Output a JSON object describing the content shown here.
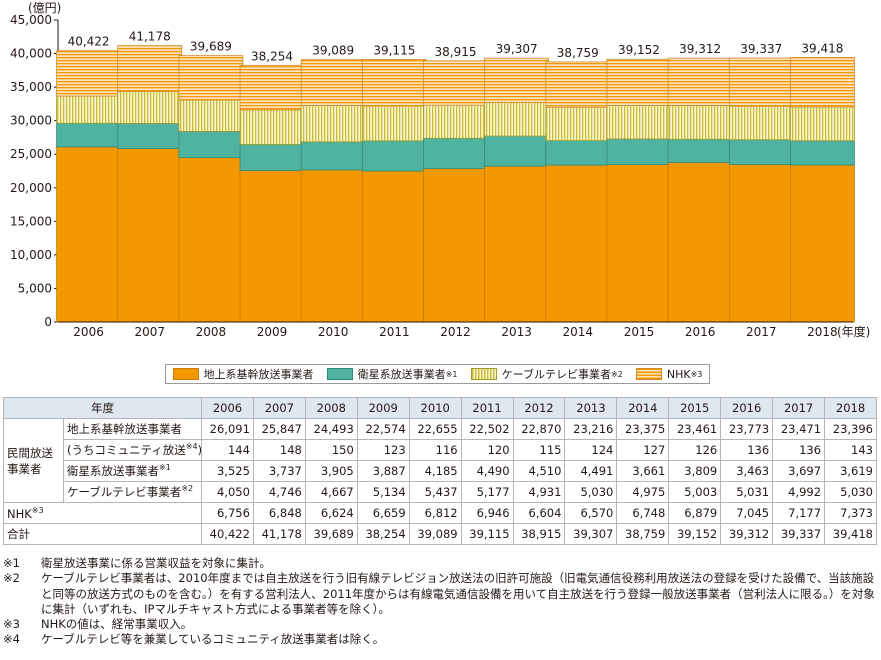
{
  "chart_data": {
    "type": "bar",
    "stacked": true,
    "unit_label": "(億円)",
    "x_unit_label": "(年度)",
    "categories": [
      "2006",
      "2007",
      "2008",
      "2009",
      "2010",
      "2011",
      "2012",
      "2013",
      "2014",
      "2015",
      "2016",
      "2017",
      "2018"
    ],
    "series": [
      {
        "name": "地上系基幹放送事業者",
        "color": "#f39800",
        "pattern": "solid",
        "values": [
          26091,
          25847,
          24493,
          22574,
          22655,
          22502,
          22870,
          23216,
          23375,
          23461,
          23773,
          23471,
          23396
        ]
      },
      {
        "name": "衛星系放送事業者",
        "note": "※1",
        "color": "#4fb3a1",
        "pattern": "solid",
        "values": [
          3525,
          3737,
          3905,
          3887,
          4185,
          4490,
          4510,
          4491,
          3661,
          3809,
          3463,
          3697,
          3619
        ]
      },
      {
        "name": "ケーブルテレビ事業者",
        "note": "※2",
        "color": "#e6e08a",
        "pattern": "vertical-lines",
        "values": [
          4050,
          4746,
          4667,
          5134,
          5437,
          5177,
          4931,
          5030,
          4975,
          5003,
          5031,
          4992,
          5030
        ]
      },
      {
        "name": "NHK",
        "note": "※3",
        "color": "#fbd49c",
        "pattern": "horizontal-lines",
        "values": [
          6756,
          6848,
          6624,
          6659,
          6812,
          6946,
          6604,
          6570,
          6748,
          6879,
          7045,
          7177,
          7373
        ]
      }
    ],
    "totals": [
      "40,422",
      "41,178",
      "39,689",
      "38,254",
      "39,089",
      "39,115",
      "38,915",
      "39,307",
      "38,759",
      "39,152",
      "39,312",
      "39,337",
      "39,418"
    ],
    "ylim": [
      0,
      45000
    ],
    "yticks": [
      0,
      5000,
      10000,
      15000,
      20000,
      25000,
      30000,
      35000,
      40000,
      45000
    ],
    "ytick_labels": [
      "0",
      "5,000",
      "10,000",
      "15,000",
      "20,000",
      "25,000",
      "30,000",
      "35,000",
      "40,000",
      "45,000"
    ],
    "grid": false,
    "legend_position": "bottom"
  },
  "legend": [
    {
      "label": "地上系基幹放送事業者",
      "mark": ""
    },
    {
      "label": "衛星系放送事業者",
      "mark": "※1"
    },
    {
      "label": "ケーブルテレビ事業者",
      "mark": "※2"
    },
    {
      "label": "NHK",
      "mark": "※3"
    }
  ],
  "table": {
    "header_label": "年度",
    "years": [
      "2006",
      "2007",
      "2008",
      "2009",
      "2010",
      "2011",
      "2012",
      "2013",
      "2014",
      "2015",
      "2016",
      "2017",
      "2018"
    ],
    "group_label": "民間放送事業者",
    "rows": [
      {
        "label": "地上系基幹放送事業者",
        "mark": "",
        "values": [
          "26,091",
          "25,847",
          "24,493",
          "22,574",
          "22,655",
          "22,502",
          "22,870",
          "23,216",
          "23,375",
          "23,461",
          "23,773",
          "23,471",
          "23,396"
        ]
      },
      {
        "label": "(うちコミュニティ放送",
        "mark": "※4",
        "close": ")",
        "values": [
          "144",
          "148",
          "150",
          "123",
          "116",
          "120",
          "115",
          "124",
          "127",
          "126",
          "136",
          "136",
          "143"
        ]
      },
      {
        "label": "衛星系放送事業者",
        "mark": "※1",
        "values": [
          "3,525",
          "3,737",
          "3,905",
          "3,887",
          "4,185",
          "4,490",
          "4,510",
          "4,491",
          "3,661",
          "3,809",
          "3,463",
          "3,697",
          "3,619"
        ]
      },
      {
        "label": "ケーブルテレビ事業者",
        "mark": "※2",
        "values": [
          "4,050",
          "4,746",
          "4,667",
          "5,134",
          "5,437",
          "5,177",
          "4,931",
          "5,030",
          "4,975",
          "5,003",
          "5,031",
          "4,992",
          "5,030"
        ]
      }
    ],
    "nhk_row": {
      "label": "NHK",
      "mark": "※3",
      "values": [
        "6,756",
        "6,848",
        "6,624",
        "6,659",
        "6,812",
        "6,946",
        "6,604",
        "6,570",
        "6,748",
        "6,879",
        "7,045",
        "7,177",
        "7,373"
      ]
    },
    "total_row": {
      "label": "合計",
      "values": [
        "40,422",
        "41,178",
        "39,689",
        "38,254",
        "39,089",
        "39,115",
        "38,915",
        "39,307",
        "38,759",
        "39,152",
        "39,312",
        "39,337",
        "39,418"
      ]
    }
  },
  "notes": [
    {
      "mark": "※1",
      "text": "衛星放送事業に係る営業収益を対象に集計。"
    },
    {
      "mark": "※2",
      "text": "ケーブルテレビ事業者は、2010年度までは自主放送を行う旧有線テレビジョン放送法の旧許可施設（旧電気通信役務利用放送法の登録を受けた設備で、当該施設と同等の放送方式のものを含む。）を有する営利法人、2011年度からは有線電気通信設備を用いて自主放送を行う登録一般放送事業者（営利法人に限る。）を対象に集計（いずれも、IPマルチキャスト方式による事業者等を除く）。"
    },
    {
      "mark": "※3",
      "text": "NHKの値は、経常事業収入。"
    },
    {
      "mark": "※4",
      "text": "ケーブルテレビ等を兼業しているコミュニティ放送事業者は除く。"
    }
  ]
}
